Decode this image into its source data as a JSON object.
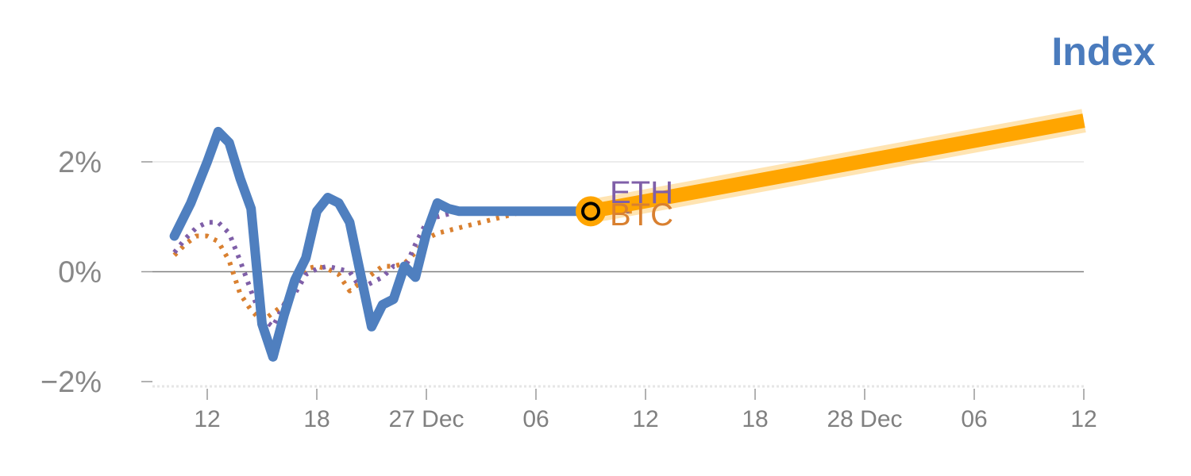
{
  "title": "Index",
  "colors": {
    "title": "#4a7bbd",
    "index": "#4f7fbf",
    "eth": "#7f5fa8",
    "btc": "#d98030",
    "forecast": "#ffa500",
    "zero_line": "#808080",
    "grid": "#e6e6e6",
    "axis": "#d0d0d0",
    "tick_text": "#888888"
  },
  "chart_data": {
    "type": "line",
    "title": "Index",
    "xlabel": "",
    "ylabel": "",
    "ylim": [
      -2.05,
      3.1
    ],
    "yticks": [
      {
        "value": 2,
        "label": "2%"
      },
      {
        "value": 0,
        "label": "0%"
      },
      {
        "value": -2,
        "label": "−2%"
      }
    ],
    "xlim": [
      0,
      85
    ],
    "xticks": [
      {
        "x": 5,
        "label": "12"
      },
      {
        "x": 15,
        "label": "18"
      },
      {
        "x": 25,
        "label": "27 Dec"
      },
      {
        "x": 35,
        "label": "06"
      },
      {
        "x": 45,
        "label": "12"
      },
      {
        "x": 55,
        "label": "18"
      },
      {
        "x": 65,
        "label": "28 Dec"
      },
      {
        "x": 75,
        "label": "06"
      },
      {
        "x": 85,
        "label": "12"
      }
    ],
    "grid": true,
    "legend": "inline labels at series end",
    "series": [
      {
        "name": "Index",
        "style": "solid",
        "x": [
          2,
          3.5,
          4.5,
          5,
          6,
          7,
          8,
          9,
          10,
          11,
          12,
          13,
          14,
          15,
          16,
          17,
          18,
          19,
          20,
          21,
          22,
          23,
          24,
          25,
          26,
          27,
          28,
          29,
          30,
          31,
          32,
          33,
          34,
          35,
          36,
          37,
          38,
          39
        ],
        "values": [
          0.65,
          1.25,
          1.75,
          2.0,
          2.55,
          2.35,
          1.7,
          1.15,
          -0.95,
          -1.55,
          -0.8,
          -0.15,
          0.25,
          1.1,
          1.35,
          1.25,
          0.9,
          -0.05,
          -1.0,
          -0.6,
          -0.5,
          0.1,
          -0.1,
          0.7,
          1.25,
          1.15,
          1.1,
          1.1,
          1.1,
          1.1,
          1.1,
          1.1,
          1.1,
          1.1,
          1.1,
          1.1,
          1.1,
          1.1
        ]
      },
      {
        "name": "ETH",
        "style": "dotted",
        "x": [
          2,
          3,
          4,
          5,
          6,
          7,
          8,
          9,
          10,
          11,
          12,
          13,
          14,
          15,
          16,
          17,
          18,
          19,
          20,
          21,
          22,
          23,
          24,
          25,
          26,
          27,
          28,
          29,
          30,
          31,
          32,
          33,
          34,
          35,
          36,
          37,
          38,
          39,
          40,
          41,
          42,
          43,
          44
        ],
        "values": [
          0.35,
          0.6,
          0.8,
          0.9,
          0.9,
          0.7,
          0.2,
          -0.35,
          -0.85,
          -1.0,
          -0.6,
          -0.4,
          -0.05,
          0.05,
          0.1,
          0.05,
          0.0,
          -0.3,
          -0.2,
          -0.1,
          0.1,
          0.05,
          0.5,
          0.9,
          1.0,
          1.05,
          1.1,
          1.1,
          1.1,
          1.1,
          1.1,
          1.1,
          1.1,
          1.1,
          1.1,
          1.1,
          1.1,
          1.1,
          1.1,
          1.1,
          1.1,
          1.1,
          1.1
        ]
      },
      {
        "name": "BTC",
        "style": "dotted",
        "x": [
          2,
          3,
          4,
          5,
          6,
          7,
          8,
          9,
          10,
          11,
          12,
          13,
          14,
          15,
          16,
          17,
          18,
          19,
          20,
          21,
          22,
          23,
          24,
          25,
          26,
          27,
          28,
          29,
          30,
          31,
          32,
          33,
          34,
          35,
          36,
          37,
          38,
          39,
          40,
          41,
          42,
          43,
          44
        ],
        "values": [
          0.3,
          0.5,
          0.65,
          0.65,
          0.55,
          0.2,
          -0.4,
          -0.7,
          -0.9,
          -0.75,
          -0.6,
          -0.2,
          0.05,
          0.1,
          0.05,
          -0.05,
          -0.35,
          -0.2,
          -0.05,
          0.1,
          0.1,
          0.15,
          0.35,
          0.6,
          0.7,
          0.75,
          0.8,
          0.85,
          0.9,
          0.95,
          1.0,
          1.05,
          1.1,
          1.1,
          1.1,
          1.1,
          1.1,
          1.1,
          1.1,
          1.1,
          1.1,
          1.1,
          1.1
        ]
      }
    ],
    "forecast": {
      "style": "thick",
      "x": [
        40,
        85
      ],
      "values": [
        1.1,
        2.75
      ]
    },
    "marker": {
      "x": 40,
      "value": 1.1
    },
    "end_labels": [
      {
        "name": "ETH",
        "value": 1.45
      },
      {
        "name": "BTC",
        "value": 1.05
      }
    ]
  }
}
